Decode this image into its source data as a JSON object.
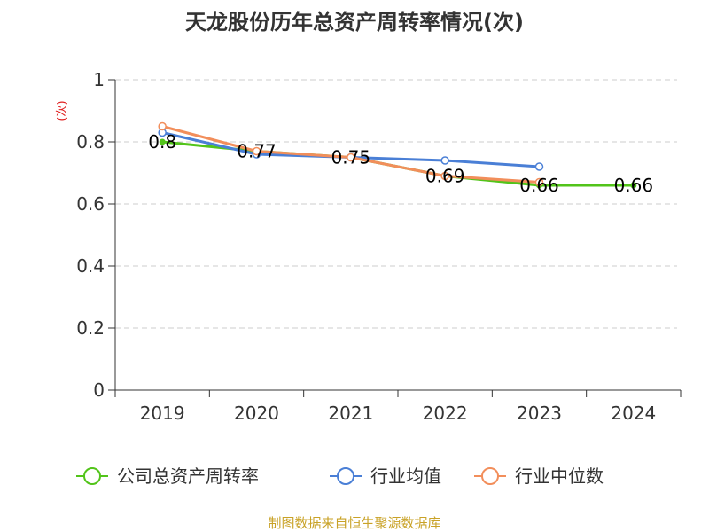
{
  "chart_data": {
    "type": "line",
    "title": "天龙股份历年总资产周转率情况(次)",
    "ylabel": "(次)",
    "categories": [
      "2019",
      "2020",
      "2021",
      "2022",
      "2023",
      "2024"
    ],
    "ylim": [
      0,
      1
    ],
    "yticks": [
      "0",
      "0.2",
      "0.4",
      "0.6",
      "0.8",
      "1"
    ],
    "grid": true,
    "legend_position": "bottom",
    "series": [
      {
        "name": "公司总资产周转率",
        "color": "#52c41a",
        "values": [
          0.8,
          0.77,
          0.75,
          0.69,
          0.66,
          0.66
        ],
        "data_labels": [
          "0.8",
          "0.77",
          "0.75",
          "0.69",
          "0.66",
          "0.66"
        ]
      },
      {
        "name": "行业均值",
        "color": "#4a7fd6",
        "values": [
          0.83,
          0.76,
          0.75,
          0.74,
          0.72,
          null
        ]
      },
      {
        "name": "行业中位数",
        "color": "#f28e5b",
        "values": [
          0.85,
          0.77,
          0.75,
          0.69,
          0.67,
          null
        ]
      }
    ]
  },
  "source": "制图数据来自恒生聚源数据库",
  "colors": {
    "axis": "#333333",
    "grid": "#cccccc",
    "ylabel": "#e02020",
    "source": "#c9a227"
  }
}
